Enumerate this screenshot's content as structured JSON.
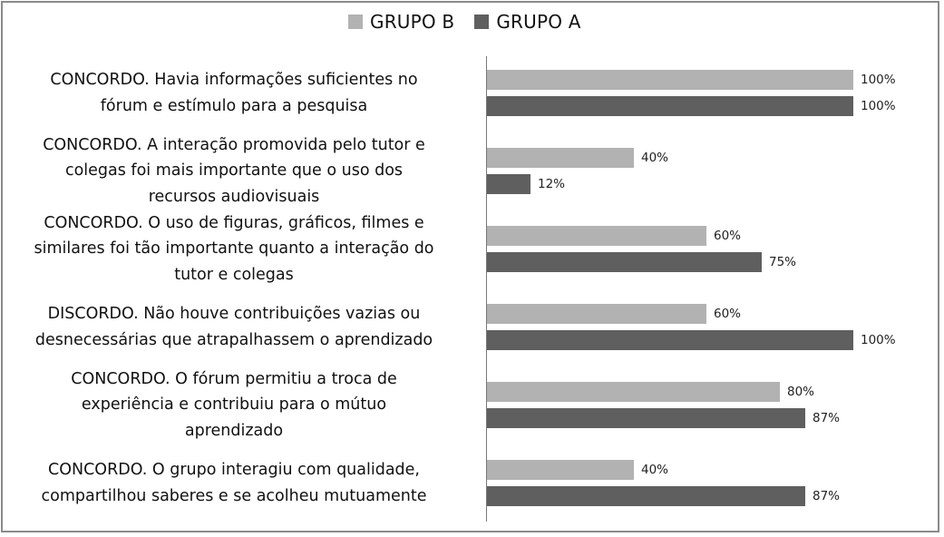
{
  "colors": {
    "grupo_b": "#b2b2b2",
    "grupo_a": "#5f5f5f",
    "border": "#8a8a8a",
    "axis": "#777777"
  },
  "legend": [
    {
      "label": "GRUPO B",
      "color": "#b2b2b2"
    },
    {
      "label": "GRUPO A",
      "color": "#5f5f5f"
    }
  ],
  "categories": [
    {
      "lines": [
        "CONCORDO. Havia informações suficientes no",
        "fórum e estímulo para a pesquisa"
      ],
      "b": 100,
      "a": 100,
      "b_label": "100%",
      "a_label": "100%"
    },
    {
      "lines": [
        "CONCORDO. A interação promovida pelo tutor e",
        "colegas foi mais importante que o uso dos",
        "recursos audiovisuais"
      ],
      "b": 40,
      "a": 12,
      "b_label": "40%",
      "a_label": "12%"
    },
    {
      "lines": [
        "CONCORDO. O uso de figuras, gráficos, filmes e",
        "similares foi tão importante quanto a interação do",
        "tutor e colegas"
      ],
      "b": 60,
      "a": 75,
      "b_label": "60%",
      "a_label": "75%"
    },
    {
      "lines": [
        "DISCORDO. Não houve contribuições vazias ou",
        "desnecessárias que atrapalhassem o aprendizado"
      ],
      "b": 60,
      "a": 100,
      "b_label": "60%",
      "a_label": "100%"
    },
    {
      "lines": [
        "CONCORDO. O fórum permitiu a troca de",
        "experiência e contribuiu para o mútuo",
        "aprendizado"
      ],
      "b": 80,
      "a": 87,
      "b_label": "80%",
      "a_label": "87%"
    },
    {
      "lines": [
        "CONCORDO. O grupo interagiu com qualidade,",
        "compartilhou saberes e se acolheu mutuamente"
      ],
      "b": 40,
      "a": 87,
      "b_label": "40%",
      "a_label": "87%"
    }
  ],
  "chart_data": {
    "type": "bar",
    "orientation": "horizontal",
    "title": "",
    "xlabel": "",
    "ylabel": "",
    "xlim": [
      0,
      100
    ],
    "grid": false,
    "legend_position": "top",
    "categories": [
      "CONCORDO. Havia informações suficientes no fórum e estímulo para a pesquisa",
      "CONCORDO. A interação promovida pelo tutor e colegas foi mais importante que o uso dos recursos audiovisuais",
      "CONCORDO. O uso de figuras, gráficos, filmes e similares foi tão importante quanto a interação do tutor e colegas",
      "DISCORDO. Não houve contribuições vazias ou desnecessárias que atrapalhassem o aprendizado",
      "CONCORDO. O fórum permitiu a troca de experiência e contribuiu para o mútuo aprendizado",
      "CONCORDO. O grupo interagiu com qualidade, compartilhou saberes e se acolheu mutuamente"
    ],
    "series": [
      {
        "name": "GRUPO B",
        "color": "#b2b2b2",
        "values": [
          100,
          40,
          60,
          60,
          80,
          40
        ]
      },
      {
        "name": "GRUPO A",
        "color": "#5f5f5f",
        "values": [
          100,
          12,
          75,
          100,
          87,
          87
        ]
      }
    ],
    "value_labels": "percent"
  }
}
